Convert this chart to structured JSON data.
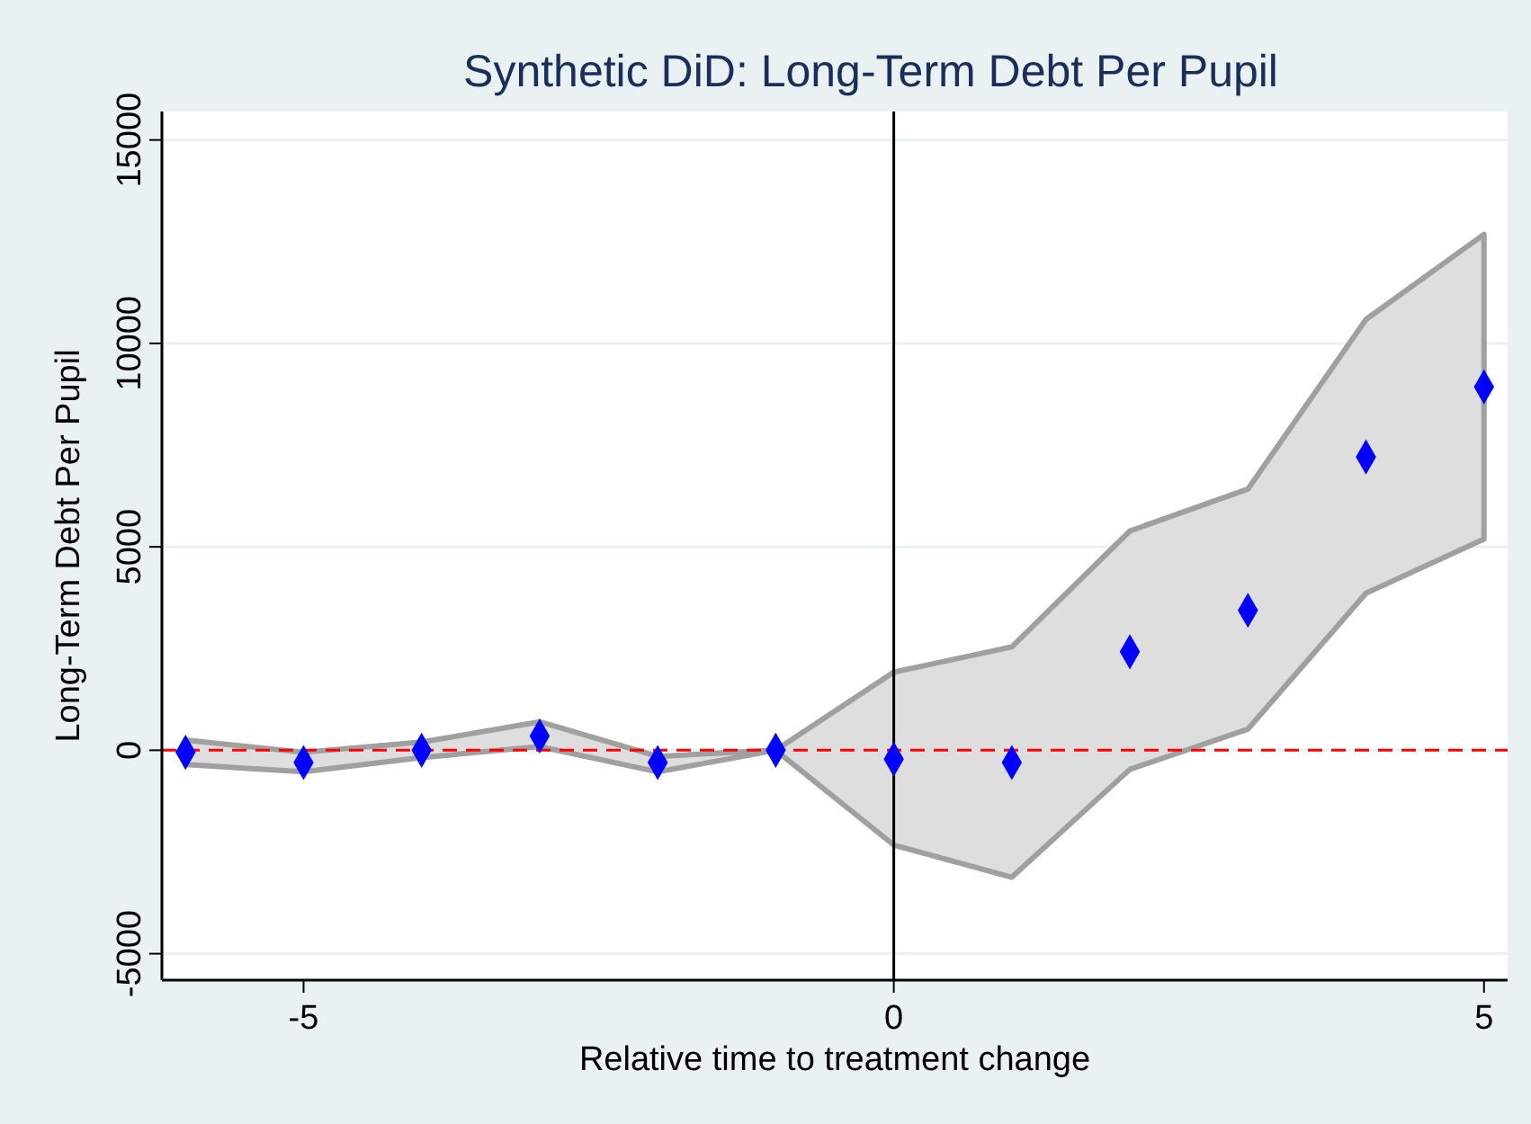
{
  "chart_data": {
    "type": "scatter",
    "title": "Synthetic DiD: Long-Term Debt Per Pupil",
    "xlabel": "Relative time to treatment change",
    "ylabel": "Long-Term Debt Per Pupil",
    "x": [
      -6,
      -5,
      -4,
      -3,
      -2,
      -1,
      0,
      1,
      2,
      3,
      4,
      5
    ],
    "series": [
      {
        "color": "#0000ff",
        "values": [
          -50,
          -300,
          0,
          350,
          -300,
          0,
          -220,
          -300,
          2420,
          3440,
          7210,
          8930
        ],
        "lower": [
          -350,
          -530,
          -180,
          90,
          -530,
          0,
          -2330,
          -3120,
          -470,
          520,
          3860,
          5190
        ],
        "upper": [
          250,
          -50,
          200,
          700,
          -150,
          0,
          1920,
          2540,
          5390,
          6420,
          10590,
          12680
        ]
      }
    ],
    "marker": "diamond",
    "xlim": [
      -6.2,
      5.2
    ],
    "xticks": [
      -5,
      0,
      5
    ],
    "ylim": [
      -5650,
      15700
    ],
    "yticks": [
      -5000,
      0,
      5000,
      10000,
      15000
    ],
    "grid": "y",
    "ref_lines": [
      {
        "axis": "y",
        "value": 0,
        "color": "#ff0000",
        "line_style": "dashed"
      },
      {
        "axis": "x",
        "value": 0,
        "color": "#000000",
        "line_style": "solid"
      }
    ]
  }
}
